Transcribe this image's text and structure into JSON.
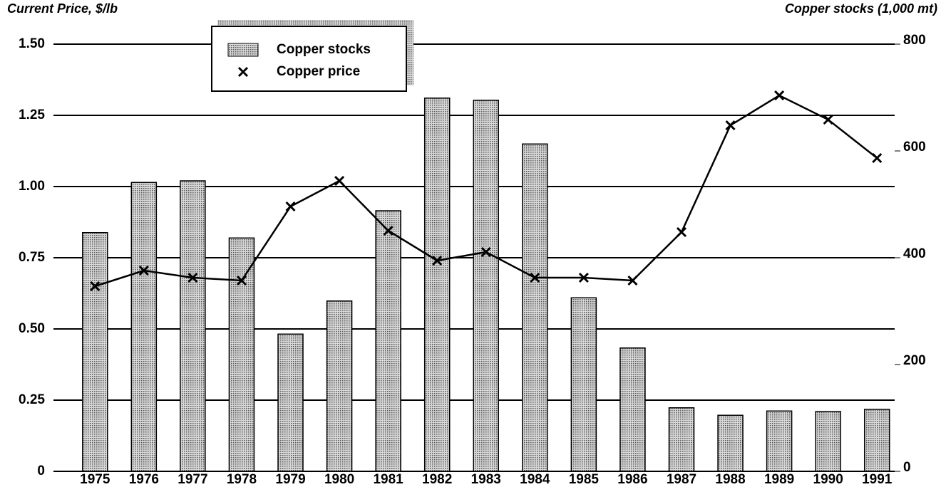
{
  "chart_data": {
    "type": "bar_line",
    "y_label": "Current Price, $/lb",
    "y2_label": "Copper stocks (1,000 mt)",
    "categories": [
      "1975",
      "1976",
      "1977",
      "1978",
      "1979",
      "1980",
      "1981",
      "1982",
      "1983",
      "1984",
      "1985",
      "1986",
      "1987",
      "1988",
      "1989",
      "1990",
      "1991"
    ],
    "series": [
      {
        "name": "Copper stocks",
        "type": "bar",
        "axis": "y2",
        "color": "#8a8a8a",
        "values": [
          447,
          541,
          544,
          437,
          257,
          319,
          488,
          699,
          695,
          613,
          325,
          231,
          119,
          105,
          113,
          112,
          116
        ]
      },
      {
        "name": "Copper price",
        "type": "line",
        "color": "#000000",
        "values": [
          0.65,
          0.705,
          0.68,
          0.67,
          0.93,
          1.02,
          0.845,
          0.74,
          0.77,
          0.68,
          0.68,
          0.67,
          0.84,
          1.215,
          1.32,
          1.235,
          1.1
        ]
      }
    ],
    "ylim": [
      0,
      1.5
    ],
    "yticks": [
      0,
      {
        "value": 0.25,
        "label": "0.25"
      },
      {
        "value": 0.5,
        "label": "0.50"
      },
      {
        "value": 0.75,
        "label": "0.75"
      },
      {
        "value": 1,
        "label": "1.00"
      },
      {
        "value": 1.25,
        "label": "1.25"
      },
      {
        "value": 1.5,
        "label": "1.50"
      }
    ],
    "y2lim": [
      0,
      800
    ],
    "y2ticks": [
      0,
      200,
      400,
      600,
      800
    ],
    "grid": true
  }
}
